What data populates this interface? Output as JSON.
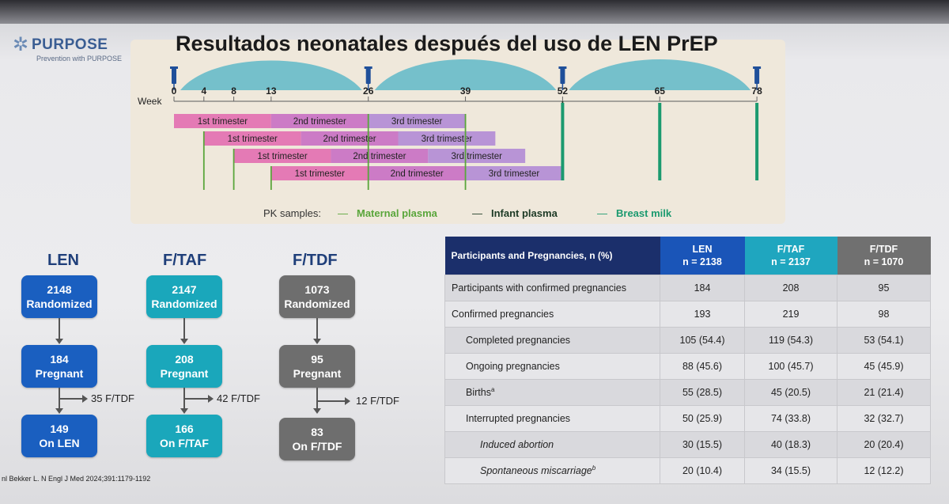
{
  "logo": {
    "name": "PURPOSE",
    "tagline": "Prevention with PURPOSE",
    "icon": "asterisk-logo-icon"
  },
  "title": "Resultados neonatales después del uso de LEN PrEP",
  "timeline": {
    "week_label": "Week",
    "ticks": [
      "0",
      "4",
      "8",
      "13",
      "26",
      "39",
      "52",
      "65",
      "78"
    ],
    "rows": [
      [
        "1st trimester",
        "2nd trimester",
        "3rd trimester"
      ],
      [
        "1st trimester",
        "2nd trimester",
        "3rd trimester"
      ],
      [
        "1st trimester",
        "2nd trimester",
        "3rd trimester"
      ],
      [
        "1st trimester",
        "2nd trimester",
        "3rd trimester"
      ]
    ],
    "legend": {
      "title": "PK samples:",
      "items": [
        "Maternal plasma",
        "Infant plasma",
        "Breast milk"
      ]
    },
    "colors": {
      "tri1": "#e47ab5",
      "tri2": "#cc7bc6",
      "tri3": "#b894d6",
      "maternal": "#5aa63b",
      "infant": "#1d3a25",
      "milk": "#1b9a6f",
      "curve": "#5fb8c8"
    }
  },
  "flows": [
    {
      "head": "LEN",
      "randomized": "2148",
      "randomized_label": "Randomized",
      "pregnant": "184",
      "pregnant_label": "Pregnant",
      "switch": "35 F/TDF",
      "final": "149",
      "final_label": "On LEN"
    },
    {
      "head": "F/TAF",
      "randomized": "2147",
      "randomized_label": "Randomized",
      "pregnant": "208",
      "pregnant_label": "Pregnant",
      "switch": "42 F/TDF",
      "final": "166",
      "final_label": "On F/TAF"
    },
    {
      "head": "F/TDF",
      "randomized": "1073",
      "randomized_label": "Randomized",
      "pregnant": "95",
      "pregnant_label": "Pregnant",
      "switch": "12 F/TDF",
      "final": "83",
      "final_label": "On F/TDF"
    }
  ],
  "citation": "nl Bekker L. N Engl J Med 2024;391:1179-1192",
  "table": {
    "header": {
      "label": "Participants and Pregnancies, n (%)",
      "cols": [
        {
          "name": "LEN",
          "n": "n = 2138"
        },
        {
          "name": "F/TAF",
          "n": "n = 2137"
        },
        {
          "name": "F/TDF",
          "n": "n = 1070"
        }
      ]
    },
    "rows": [
      {
        "label": "Participants with confirmed pregnancies",
        "values": [
          "184",
          "208",
          "95"
        ]
      },
      {
        "label": "Confirmed pregnancies",
        "values": [
          "193",
          "219",
          "98"
        ]
      },
      {
        "label": "Completed pregnancies",
        "values": [
          "105 (54.4)",
          "119 (54.3)",
          "53 (54.1)"
        ]
      },
      {
        "label": "Ongoing pregnancies",
        "values": [
          "88 (45.6)",
          "100 (45.7)",
          "45 (45.9)"
        ]
      },
      {
        "label": "Births",
        "sup": "a",
        "values": [
          "55 (28.5)",
          "45 (20.5)",
          "21 (21.4)"
        ]
      },
      {
        "label": "Interrupted pregnancies",
        "values": [
          "50 (25.9)",
          "74 (33.8)",
          "32 (32.7)"
        ]
      },
      {
        "label": "Induced abortion",
        "values": [
          "30 (15.5)",
          "40 (18.3)",
          "20 (20.4)"
        ]
      },
      {
        "label": "Spontaneous miscarriage",
        "sup": "b",
        "values": [
          "20 (10.4)",
          "34 (15.5)",
          "12 (12.2)"
        ]
      }
    ]
  }
}
